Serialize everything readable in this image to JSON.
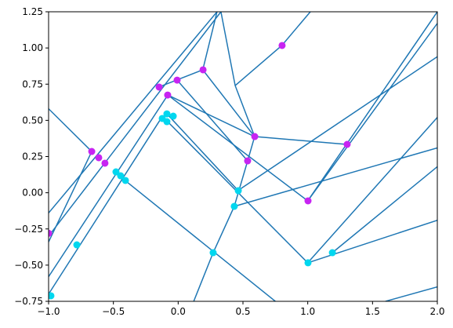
{
  "chart_data": {
    "type": "scatter",
    "xlim": [
      -1,
      2
    ],
    "ylim": [
      -0.75,
      1.25
    ],
    "xticks": [
      {
        "value": -1,
        "label": "−1.0"
      },
      {
        "value": -0.5,
        "label": "−0.5"
      },
      {
        "value": 0,
        "label": "0.0"
      },
      0.5,
      {
        "value": 1,
        "label": "1.0"
      },
      1.5,
      {
        "value": 2,
        "label": "2.0"
      }
    ],
    "yticks": [
      {
        "value": -0.75,
        "label": "−0.75"
      },
      {
        "value": -0.5,
        "label": "−0.50"
      },
      {
        "value": -0.25,
        "label": "−0.25"
      },
      {
        "value": 0,
        "label": "0.00"
      },
      0.25,
      {
        "value": 0.5,
        "label": "0.50"
      },
      0.75,
      {
        "value": 1,
        "label": "1.00"
      },
      1.25
    ],
    "segment_color": "#1f77b4",
    "segments": [
      {
        "x": [
          -1,
          0.3
        ],
        "y": [
          -0.14,
          1.25
        ]
      },
      {
        "x": [
          -1,
          0.33
        ],
        "y": [
          -0.3,
          1.25
        ]
      },
      {
        "x": [
          -1,
          -0.667
        ],
        "y": [
          -0.34,
          0.285
        ]
      },
      {
        "x": [
          -1,
          -0.08
        ],
        "y": [
          -0.58,
          0.675
        ]
      },
      {
        "x": [
          -1,
          -0.12
        ],
        "y": [
          -0.7,
          0.53
        ]
      },
      {
        "x": [
          -1,
          -0.667
        ],
        "y": [
          0.58,
          0.285
        ]
      },
      {
        "x": [
          -0.08,
          0.59
        ],
        "y": [
          0.675,
          0.388
        ]
      },
      {
        "x": [
          -0.15,
          0.19,
          0.3
        ],
        "y": [
          0.73,
          0.849,
          1.25
        ]
      },
      {
        "x": [
          0.19,
          0.59
        ],
        "y": [
          0.849,
          0.388
        ]
      },
      {
        "x": [
          0.33,
          0.44,
          0.59
        ],
        "y": [
          1.25,
          0.74,
          0.388
        ]
      },
      {
        "x": [
          0.44,
          0.8,
          1.02
        ],
        "y": [
          0.74,
          1.017,
          1.25
        ]
      },
      {
        "x": [
          0.59,
          1.3
        ],
        "y": [
          0.388,
          0.334
        ]
      },
      {
        "x": [
          0.59,
          0.536,
          0.433,
          0.27,
          0.12
        ],
        "y": [
          0.388,
          0.22,
          -0.094,
          -0.414,
          -0.75
        ]
      },
      {
        "x": [
          -0.008,
          0.536
        ],
        "y": [
          0.778,
          0.22
        ]
      },
      {
        "x": [
          -0.08,
          1.0
        ],
        "y": [
          0.675,
          -0.056
        ]
      },
      {
        "x": [
          1.0,
          2
        ],
        "y": [
          -0.056,
          1.25
        ]
      },
      {
        "x": [
          1.0,
          2
        ],
        "y": [
          -0.056,
          1.17
        ]
      },
      {
        "x": [
          0.433,
          2
        ],
        "y": [
          -0.094,
          0.31
        ]
      },
      {
        "x": [
          0.46,
          2
        ],
        "y": [
          0.014,
          0.94
        ]
      },
      {
        "x": [
          -0.08,
          1.0
        ],
        "y": [
          0.49,
          -0.484
        ]
      },
      {
        "x": [
          1.0,
          2
        ],
        "y": [
          -0.484,
          0.52
        ]
      },
      {
        "x": [
          1.19,
          2
        ],
        "y": [
          -0.414,
          0.18
        ]
      },
      {
        "x": [
          1.0,
          2
        ],
        "y": [
          -0.484,
          -0.19
        ]
      },
      {
        "x": [
          -0.41,
          0.75
        ],
        "y": [
          0.085,
          -0.75
        ]
      },
      {
        "x": [
          1.6,
          2
        ],
        "y": [
          -0.75,
          -0.65
        ]
      },
      {
        "x": [
          -0.087,
          0.464
        ],
        "y": [
          0.545,
          0.014
        ]
      }
    ],
    "series": [
      {
        "color": "#c724f2",
        "x": [
          -1.0,
          -0.667,
          -0.613,
          -0.565,
          -0.147,
          -0.081,
          -0.008,
          0.192,
          0.536,
          0.591,
          0.802,
          1.002,
          1.304
        ],
        "values": [
          -0.28,
          0.285,
          0.242,
          0.204,
          0.73,
          0.675,
          0.778,
          0.849,
          0.22,
          0.388,
          1.017,
          -0.056,
          0.334
        ]
      },
      {
        "color": "#00d7ef",
        "x": [
          -0.982,
          -0.782,
          -0.48,
          -0.444,
          -0.407,
          -0.123,
          -0.087,
          -0.087,
          -0.038,
          0.27,
          0.433,
          0.464,
          1.002,
          1.19
        ],
        "values": [
          -0.712,
          -0.36,
          0.144,
          0.117,
          0.085,
          0.513,
          0.545,
          0.491,
          0.529,
          -0.414,
          -0.094,
          0.014,
          -0.484,
          -0.414
        ]
      }
    ]
  }
}
